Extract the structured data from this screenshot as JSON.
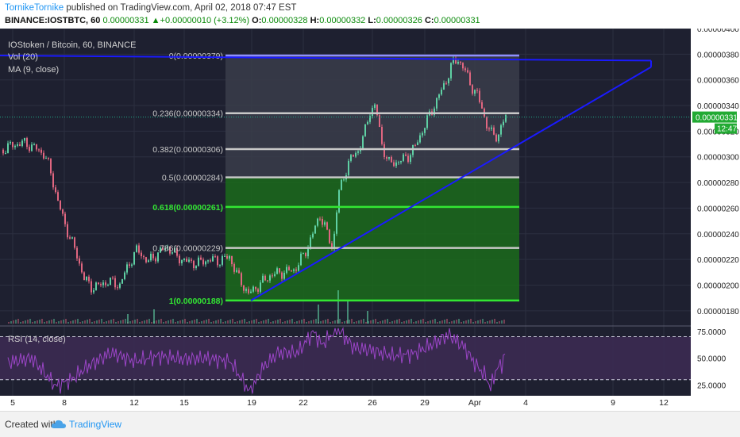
{
  "header": {
    "author": "TornikeTornike",
    "published": " published on TradingView.com, April 02, 2018 07:47 EST",
    "symbol": "BINANCE:IOSTBTC, 60",
    "last": "0.00000331",
    "change": "+0.00000010 (+3.12%)",
    "o_label": "O:",
    "o": "0.00000328",
    "h_label": "H:",
    "h": "0.00000332",
    "l_label": "L:",
    "l": "0.00000326",
    "c_label": "C:",
    "c": "0.00000331"
  },
  "legend": {
    "title": "IOStoken / Bitcoin, 60, BINANCE",
    "vol": "Vol (20)",
    "ma": "MA (9, close)",
    "rsi": "RSI (14, close)"
  },
  "footer": {
    "created": "Created with",
    "brand": "TradingView"
  },
  "colors": {
    "background": "#1e2030",
    "up": "#5fd0a4",
    "down": "#e06680",
    "fib_zone": "#3a3d4a",
    "green_zone": "#1b6b1b",
    "green_line": "#33e633",
    "trendline": "#1a1aff",
    "rsi_fill": "#3b2a52",
    "rsi_line": "#9b45c7",
    "price_tag": "#22aa33"
  },
  "chart_data": {
    "type": "candlestick",
    "title": "IOStoken / Bitcoin, 60, BINANCE",
    "ylim": [
      1.7e-06,
      4e-06
    ],
    "y_ticks": [
      "0.00000400",
      "0.00000380",
      "0.00000360",
      "0.00000340",
      "0.00000320",
      "0.00000300",
      "0.00000280",
      "0.00000260",
      "0.00000240",
      "0.00000220",
      "0.00000200",
      "0.00000180"
    ],
    "x_ticks": [
      "5",
      "8",
      "12",
      "15",
      "19",
      "22",
      "26",
      "29",
      "Apr",
      "4",
      "9",
      "12"
    ],
    "current_price": "0.00000331",
    "countdown": "12:47",
    "fib_levels": [
      {
        "label": "0(0.00000379)",
        "value": 3.79e-06
      },
      {
        "label": "0.236(0.00000334)",
        "value": 3.34e-06
      },
      {
        "label": "0.382(0.00000306)",
        "value": 3.06e-06
      },
      {
        "label": "0.5(0.00000284)",
        "value": 2.84e-06
      },
      {
        "label": "0.618(0.00000261)",
        "value": 2.61e-06
      },
      {
        "label": "0.786(0.00000229)",
        "value": 2.29e-06
      },
      {
        "label": "1(0.00000188)",
        "value": 1.88e-06
      }
    ],
    "price_path": [
      [
        0,
        3.05e-06
      ],
      [
        14,
        3.09e-06
      ],
      [
        28,
        3.11e-06
      ],
      [
        40,
        3.08e-06
      ],
      [
        55,
        3.02e-06
      ],
      [
        62,
        2.9e-06
      ],
      [
        72,
        2.65e-06
      ],
      [
        82,
        2.45e-06
      ],
      [
        95,
        2.25e-06
      ],
      [
        105,
        2.05e-06
      ],
      [
        115,
        1.98e-06
      ],
      [
        125,
        2e-06
      ],
      [
        135,
        2.03e-06
      ],
      [
        150,
        2e-06
      ],
      [
        160,
        2.15e-06
      ],
      [
        172,
        2.28e-06
      ],
      [
        185,
        2.18e-06
      ],
      [
        198,
        2.25e-06
      ],
      [
        210,
        2.3e-06
      ],
      [
        222,
        2.22e-06
      ],
      [
        235,
        2.18e-06
      ],
      [
        248,
        2.17e-06
      ],
      [
        262,
        2.2e-06
      ],
      [
        275,
        2.19e-06
      ],
      [
        288,
        2.22e-06
      ],
      [
        300,
        2.05e-06
      ],
      [
        312,
        1.93e-06
      ],
      [
        325,
        2e-06
      ],
      [
        340,
        2.08e-06
      ],
      [
        355,
        2.1e-06
      ],
      [
        370,
        2.12e-06
      ],
      [
        383,
        2.25e-06
      ],
      [
        393,
        2.4e-06
      ],
      [
        402,
        2.55e-06
      ],
      [
        410,
        2.42e-06
      ],
      [
        418,
        2.28e-06
      ],
      [
        425,
        2.7e-06
      ],
      [
        432,
        2.85e-06
      ],
      [
        440,
        2.98e-06
      ],
      [
        450,
        3.05e-06
      ],
      [
        458,
        3.18e-06
      ],
      [
        465,
        3.36e-06
      ],
      [
        472,
        3.4e-06
      ],
      [
        480,
        3.1e-06
      ],
      [
        488,
        2.95e-06
      ],
      [
        500,
        2.96e-06
      ],
      [
        512,
        3e-06
      ],
      [
        522,
        3.08e-06
      ],
      [
        532,
        3.22e-06
      ],
      [
        542,
        3.35e-06
      ],
      [
        552,
        3.48e-06
      ],
      [
        560,
        3.58e-06
      ],
      [
        568,
        3.72e-06
      ],
      [
        576,
        3.76e-06
      ],
      [
        584,
        3.68e-06
      ],
      [
        592,
        3.56e-06
      ],
      [
        600,
        3.48e-06
      ],
      [
        606,
        3.38e-06
      ],
      [
        612,
        3.25e-06
      ],
      [
        618,
        3.18e-06
      ],
      [
        626,
        3.16e-06
      ],
      [
        632,
        3.26e-06
      ],
      [
        636,
        3.31e-06
      ]
    ],
    "volume_spikes": [
      [
        160,
        12
      ],
      [
        193,
        18
      ],
      [
        400,
        24
      ],
      [
        425,
        42
      ],
      [
        437,
        28
      ],
      [
        462,
        16
      ]
    ],
    "rsi": {
      "ylim": [
        15,
        80
      ],
      "ticks": [
        "75.0000",
        "50.0000",
        "25.0000"
      ],
      "upper": 70,
      "lower": 30,
      "path": [
        [
          10,
          46
        ],
        [
          40,
          50
        ],
        [
          70,
          24
        ],
        [
          90,
          30
        ],
        [
          110,
          42
        ],
        [
          140,
          55
        ],
        [
          170,
          47
        ],
        [
          200,
          52
        ],
        [
          230,
          49
        ],
        [
          260,
          50
        ],
        [
          290,
          47
        ],
        [
          315,
          18
        ],
        [
          330,
          40
        ],
        [
          350,
          55
        ],
        [
          375,
          55
        ],
        [
          395,
          75
        ],
        [
          405,
          62
        ],
        [
          425,
          78
        ],
        [
          445,
          60
        ],
        [
          470,
          57
        ],
        [
          495,
          52
        ],
        [
          520,
          54
        ],
        [
          545,
          63
        ],
        [
          565,
          72
        ],
        [
          585,
          60
        ],
        [
          598,
          45
        ],
        [
          612,
          33
        ],
        [
          618,
          22
        ],
        [
          625,
          40
        ],
        [
          632,
          44
        ],
        [
          637,
          58
        ]
      ]
    }
  }
}
